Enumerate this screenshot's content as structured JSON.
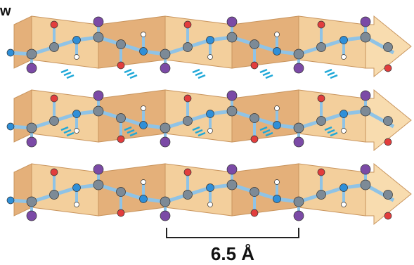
{
  "labels": {
    "corner": "w",
    "scale": "6.5 Å"
  }
}
